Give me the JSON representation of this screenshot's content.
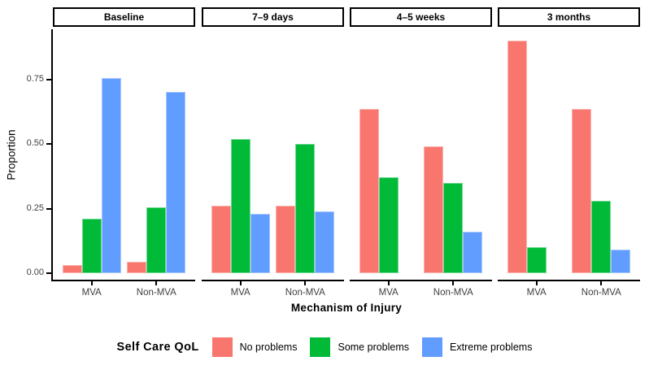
{
  "chart_data": {
    "type": "bar",
    "title": "",
    "xlabel": "Mechanism of Injury",
    "ylabel": "Proportion",
    "legend_title": "Self Care QoL",
    "legend_position": "bottom",
    "grid": false,
    "ylim": [
      0,
      0.95
    ],
    "yticks": [
      0,
      0.25,
      0.5,
      0.75
    ],
    "ytick_labels": [
      "0.00",
      "0.25",
      "0.50",
      "0.75"
    ],
    "series": [
      {
        "name": "No problems",
        "color": "#F8766D"
      },
      {
        "name": "Some problems",
        "color": "#00BA38"
      },
      {
        "name": "Extreme problems",
        "color": "#619CFF"
      }
    ],
    "facets": [
      {
        "label": "Baseline",
        "groups": [
          {
            "category": "MVA",
            "values": [
              0.03,
              0.21,
              0.755
            ]
          },
          {
            "category": "Non-MVA",
            "values": [
              0.045,
              0.255,
              0.7
            ]
          }
        ]
      },
      {
        "label": "7–9 days",
        "groups": [
          {
            "category": "MVA",
            "values": [
              0.26,
              0.52,
              0.23
            ]
          },
          {
            "category": "Non-MVA",
            "values": [
              0.26,
              0.5,
              0.24
            ]
          }
        ]
      },
      {
        "label": "4–5 weeks",
        "groups": [
          {
            "category": "MVA",
            "values": [
              0.635,
              0.37,
              0
            ]
          },
          {
            "category": "Non-MVA",
            "values": [
              0.49,
              0.35,
              0.16
            ]
          }
        ]
      },
      {
        "label": "3 months",
        "groups": [
          {
            "category": "MVA",
            "values": [
              0.9,
              0.1,
              0
            ]
          },
          {
            "category": "Non-MVA",
            "values": [
              0.635,
              0.28,
              0.09
            ]
          }
        ]
      }
    ]
  }
}
